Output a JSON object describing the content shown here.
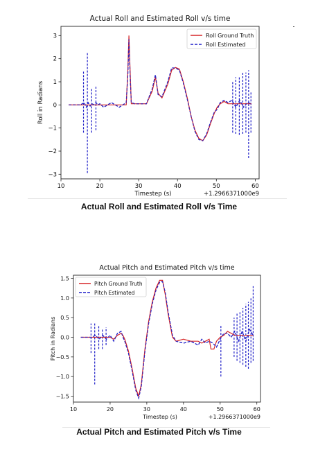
{
  "charts": [
    {
      "caption": "Actual Roll and Estimated Roll v/s Time",
      "chart_data": {
        "type": "line",
        "title": "Actual Roll and Estimated Roll v/s time",
        "xlabel": "Timestep (s)",
        "ylabel": "Roll in Radians",
        "offset_text": "+1.2966371000e9",
        "xlim": [
          10,
          61
        ],
        "ylim": [
          -3.2,
          3.4
        ],
        "xticks": [
          10,
          20,
          30,
          40,
          50,
          60
        ],
        "yticks": [
          -3,
          -2,
          -1,
          0,
          1,
          2,
          3
        ],
        "legend_position": "upper right",
        "grid": false,
        "series": [
          {
            "name": "Roll Ground Truth",
            "color": "#d62728",
            "style": "solid",
            "x": [
              12,
              26.8,
              27.2,
              27.5,
              27.8,
              28.1,
              29,
              32,
              33.5,
              34.3,
              35,
              36,
              37.5,
              38.5,
              39.5,
              40.5,
              41.5,
              42.5,
              43.5,
              44.5,
              45.5,
              46.5,
              47.5,
              48.5,
              49.5,
              50.2,
              51,
              52,
              53,
              59
            ],
            "y": [
              0,
              0,
              1.5,
              3.0,
              1.5,
              0.05,
              0.05,
              0.05,
              0.6,
              1.2,
              0.5,
              0.3,
              0.9,
              1.5,
              1.62,
              1.55,
              1.0,
              0.3,
              -0.5,
              -1.1,
              -1.45,
              -1.55,
              -1.3,
              -0.8,
              -0.35,
              -0.1,
              0.05,
              0.15,
              0.05,
              0.05
            ]
          },
          {
            "name": "Roll Estimated",
            "color": "#1f1fc8",
            "style": "dashed",
            "x": [
              12,
              15,
              15.5,
              16,
              16.5,
              17,
              17.5,
              18,
              18.5,
              19,
              19.5,
              20,
              21,
              23,
              25,
              26.8,
              27.2,
              27.5,
              27.8,
              28.1,
              29,
              32,
              33.5,
              34.3,
              35,
              36,
              37.5,
              38.5,
              39.5,
              40.5,
              41.5,
              42.5,
              43.5,
              44.5,
              45.5,
              46.5,
              47.5,
              48.5,
              49.5,
              50.2,
              51,
              52,
              53,
              54,
              55,
              56,
              57,
              58,
              59
            ],
            "y": [
              0,
              0,
              0.05,
              0.1,
              -0.1,
              0.1,
              -0.05,
              0.05,
              0,
              0.1,
              0,
              0.05,
              -0.1,
              0.1,
              -0.1,
              0.1,
              1.3,
              2.85,
              1.3,
              0.1,
              0.05,
              0.05,
              0.7,
              1.3,
              0.45,
              0.35,
              1.0,
              1.6,
              1.6,
              1.5,
              0.95,
              0.25,
              -0.5,
              -1.15,
              -1.5,
              -1.55,
              -1.25,
              -0.75,
              -0.3,
              -0.2,
              0.1,
              0.2,
              0.1,
              0.2,
              -0.1,
              0.2,
              -0.1,
              0.1,
              0.05
            ]
          }
        ],
        "spikes": [
          {
            "x": 15.8,
            "y0": -1.2,
            "y1": 1.45
          },
          {
            "x": 16.8,
            "y0": -2.95,
            "y1": 2.3
          },
          {
            "x": 17.9,
            "y0": -1.2,
            "y1": 0.7
          },
          {
            "x": 19.0,
            "y0": -1.1,
            "y1": 0.8
          },
          {
            "x": 54.2,
            "y0": -1.2,
            "y1": 1.0
          },
          {
            "x": 55.0,
            "y0": -1.25,
            "y1": 1.2
          },
          {
            "x": 55.9,
            "y0": -1.3,
            "y1": 1.25
          },
          {
            "x": 56.8,
            "y0": -1.25,
            "y1": 1.45
          },
          {
            "x": 57.6,
            "y0": -1.2,
            "y1": 1.4
          },
          {
            "x": 58.3,
            "y0": -2.3,
            "y1": 1.5
          },
          {
            "x": 58.9,
            "y0": -1.2,
            "y1": 0.6
          }
        ]
      }
    },
    {
      "caption": "Actual Pitch and Estimated Pitch v/s Time",
      "chart_data": {
        "type": "line",
        "title": "Actual Pitch and Estimated Pitch v/s time",
        "xlabel": "Timestep (s)",
        "ylabel": "Pitch in Radians",
        "offset_text": "+1.2966371000e9",
        "xlim": [
          10,
          61
        ],
        "ylim": [
          -1.65,
          1.58
        ],
        "xticks": [
          10,
          20,
          30,
          40,
          50,
          60
        ],
        "yticks": [
          -1.5,
          -1.0,
          -0.5,
          0.0,
          0.5,
          1.0,
          1.5
        ],
        "legend_position": "upper left",
        "grid": false,
        "series": [
          {
            "name": "Pitch Ground Truth",
            "color": "#d62728",
            "style": "solid",
            "x": [
              12,
              20,
              21,
              22,
              23,
              23.5,
              24,
              25,
              26,
              27,
              27.8,
              28.5,
              29.5,
              30.5,
              31.5,
              32.5,
              33.5,
              34.3,
              35,
              35.8,
              36.5,
              37,
              38,
              40,
              42,
              44,
              45,
              46,
              47,
              47.5,
              48.3,
              49,
              50,
              51,
              52,
              54,
              59
            ],
            "y": [
              0,
              0,
              -0.05,
              0.05,
              0.1,
              0.05,
              -0.05,
              -0.35,
              -0.8,
              -1.3,
              -1.5,
              -1.2,
              -0.3,
              0.4,
              0.9,
              1.25,
              1.45,
              1.45,
              1.1,
              0.6,
              0.25,
              0.0,
              -0.1,
              -0.05,
              -0.1,
              -0.1,
              -0.15,
              -0.1,
              -0.05,
              -0.3,
              -0.3,
              -0.1,
              0.0,
              0.05,
              0.15,
              0.05,
              0.05
            ]
          },
          {
            "name": "Pitch Estimated",
            "color": "#1f1fc8",
            "style": "dashed",
            "x": [
              12,
              15,
              16,
              17,
              18,
              19,
              20,
              21,
              22,
              23,
              23.5,
              24,
              25,
              26,
              27,
              27.8,
              28.5,
              29.5,
              30.5,
              31.5,
              32.5,
              33.5,
              34.3,
              35,
              35.8,
              36.5,
              37,
              38,
              40,
              42,
              44,
              45,
              46,
              47,
              48,
              49,
              50,
              51,
              52,
              53,
              54,
              55,
              56,
              57,
              58,
              59
            ],
            "y": [
              0,
              0,
              0.05,
              -0.05,
              0.05,
              -0.05,
              0.05,
              -0.1,
              0.1,
              0.15,
              0.0,
              -0.1,
              -0.4,
              -0.85,
              -1.35,
              -1.55,
              -1.25,
              -0.35,
              0.35,
              0.85,
              1.2,
              1.4,
              1.42,
              1.15,
              0.65,
              0.3,
              0.05,
              -0.1,
              -0.15,
              -0.1,
              -0.2,
              -0.05,
              -0.15,
              -0.1,
              -0.15,
              -0.25,
              -0.05,
              0.1,
              0.1,
              0.0,
              0.15,
              -0.1,
              0.15,
              -0.1,
              0.2,
              0.05
            ]
          }
        ],
        "spikes": [
          {
            "x": 14.8,
            "y0": -0.4,
            "y1": 0.35
          },
          {
            "x": 15.8,
            "y0": -1.2,
            "y1": 0.35
          },
          {
            "x": 16.9,
            "y0": -0.3,
            "y1": 0.3
          },
          {
            "x": 17.9,
            "y0": -0.3,
            "y1": 0.2
          },
          {
            "x": 18.9,
            "y0": -0.2,
            "y1": 0.25
          },
          {
            "x": 50.2,
            "y0": -1.0,
            "y1": 0.3
          },
          {
            "x": 53.8,
            "y0": -0.5,
            "y1": 0.5
          },
          {
            "x": 54.6,
            "y0": -0.6,
            "y1": 0.6
          },
          {
            "x": 55.4,
            "y0": -0.65,
            "y1": 0.65
          },
          {
            "x": 56.2,
            "y0": -0.7,
            "y1": 0.75
          },
          {
            "x": 57.0,
            "y0": -0.75,
            "y1": 0.85
          },
          {
            "x": 57.7,
            "y0": -0.8,
            "y1": 0.9
          },
          {
            "x": 58.4,
            "y0": -0.65,
            "y1": 1.0
          },
          {
            "x": 59.0,
            "y0": -0.6,
            "y1": 1.3
          }
        ]
      }
    }
  ]
}
